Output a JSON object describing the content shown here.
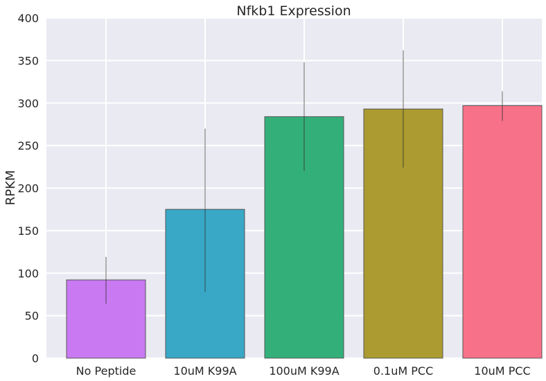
{
  "chart_data": {
    "type": "bar",
    "title": "Nfkb1 Expression",
    "xlabel": "",
    "ylabel": "RPKM",
    "categories": [
      "No Peptide",
      "10uM K99A",
      "100uM K99A",
      "0.1uM PCC",
      "10uM PCC"
    ],
    "values": [
      92,
      175,
      284,
      293,
      297
    ],
    "error_low": [
      64,
      78,
      220,
      224,
      279
    ],
    "error_high": [
      119,
      270,
      348,
      362,
      314
    ],
    "colors": [
      "#c979f2",
      "#39a7c6",
      "#33b079",
      "#ab9b30",
      "#f77189"
    ],
    "ylim": [
      0,
      400
    ],
    "yticks": [
      0,
      50,
      100,
      150,
      200,
      250,
      300,
      350,
      400
    ],
    "grid": true,
    "background": "#eaeaf2"
  }
}
